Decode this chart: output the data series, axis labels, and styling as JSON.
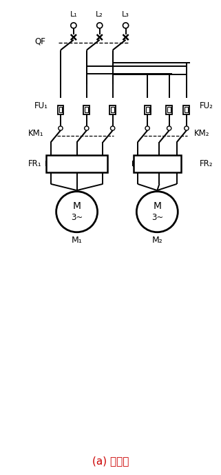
{
  "title": "(a) 主回路",
  "title_fontsize": 11,
  "title_color": "#cc0000",
  "bg_color": "#ffffff",
  "line_color": "#000000",
  "fig_width": 3.21,
  "fig_height": 6.89,
  "dpi": 100,
  "labels": {
    "L1": "L₁",
    "L2": "L₂",
    "L3": "L₃",
    "QF": "QF",
    "FU1": "FU₁",
    "FU2": "FU₂",
    "KM1": "KM₁",
    "KM2": "KM₂",
    "FR1": "FR₁",
    "FR2": "FR₂",
    "M1": "M₁",
    "M2": "M₂"
  }
}
